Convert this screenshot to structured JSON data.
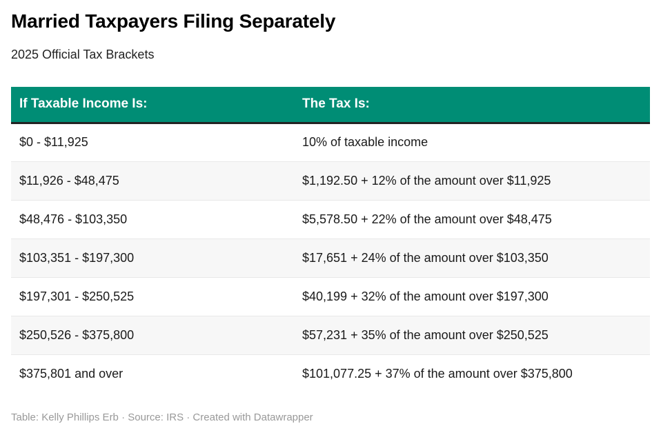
{
  "chart_data": {
    "type": "table",
    "title": "Married Taxpayers Filing Separately",
    "subtitle": "2025 Official Tax Brackets",
    "columns": [
      "If Taxable Income Is:",
      "The Tax Is:"
    ],
    "rows": [
      [
        "$0 - $11,925",
        "10% of taxable income"
      ],
      [
        "$11,926 - $48,475",
        "$1,192.50 + 12% of the amount over $11,925"
      ],
      [
        "$48,476 - $103,350",
        "$5,578.50 + 22% of the amount over $48,475"
      ],
      [
        "$103,351 - $197,300",
        "$17,651 + 24% of the amount over $103,350"
      ],
      [
        "$197,301 - $250,525",
        "$40,199 + 32% of the amount over $197,300"
      ],
      [
        "$250,526 - $375,800",
        "$57,231 + 35% of the amount over $250,525"
      ],
      [
        "$375,801 and over",
        "$101,077.25 + 37% of the amount over $375,800"
      ]
    ],
    "layout_hints": {
      "zebra_striping": true,
      "header_position": "top"
    }
  },
  "footer": {
    "attribution": "Table: Kelly Phillips Erb · Source: IRS · Created with Datawrapper"
  },
  "colors": {
    "header_bg": "#008D75",
    "header_text": "#FFFFFF",
    "header_border": "#232323",
    "stripe_bg": "#F7F7F7",
    "row_divider": "#E8E8E8",
    "body_text": "#1A1A1A",
    "title_text": "#000000",
    "footer_text": "#999999"
  }
}
